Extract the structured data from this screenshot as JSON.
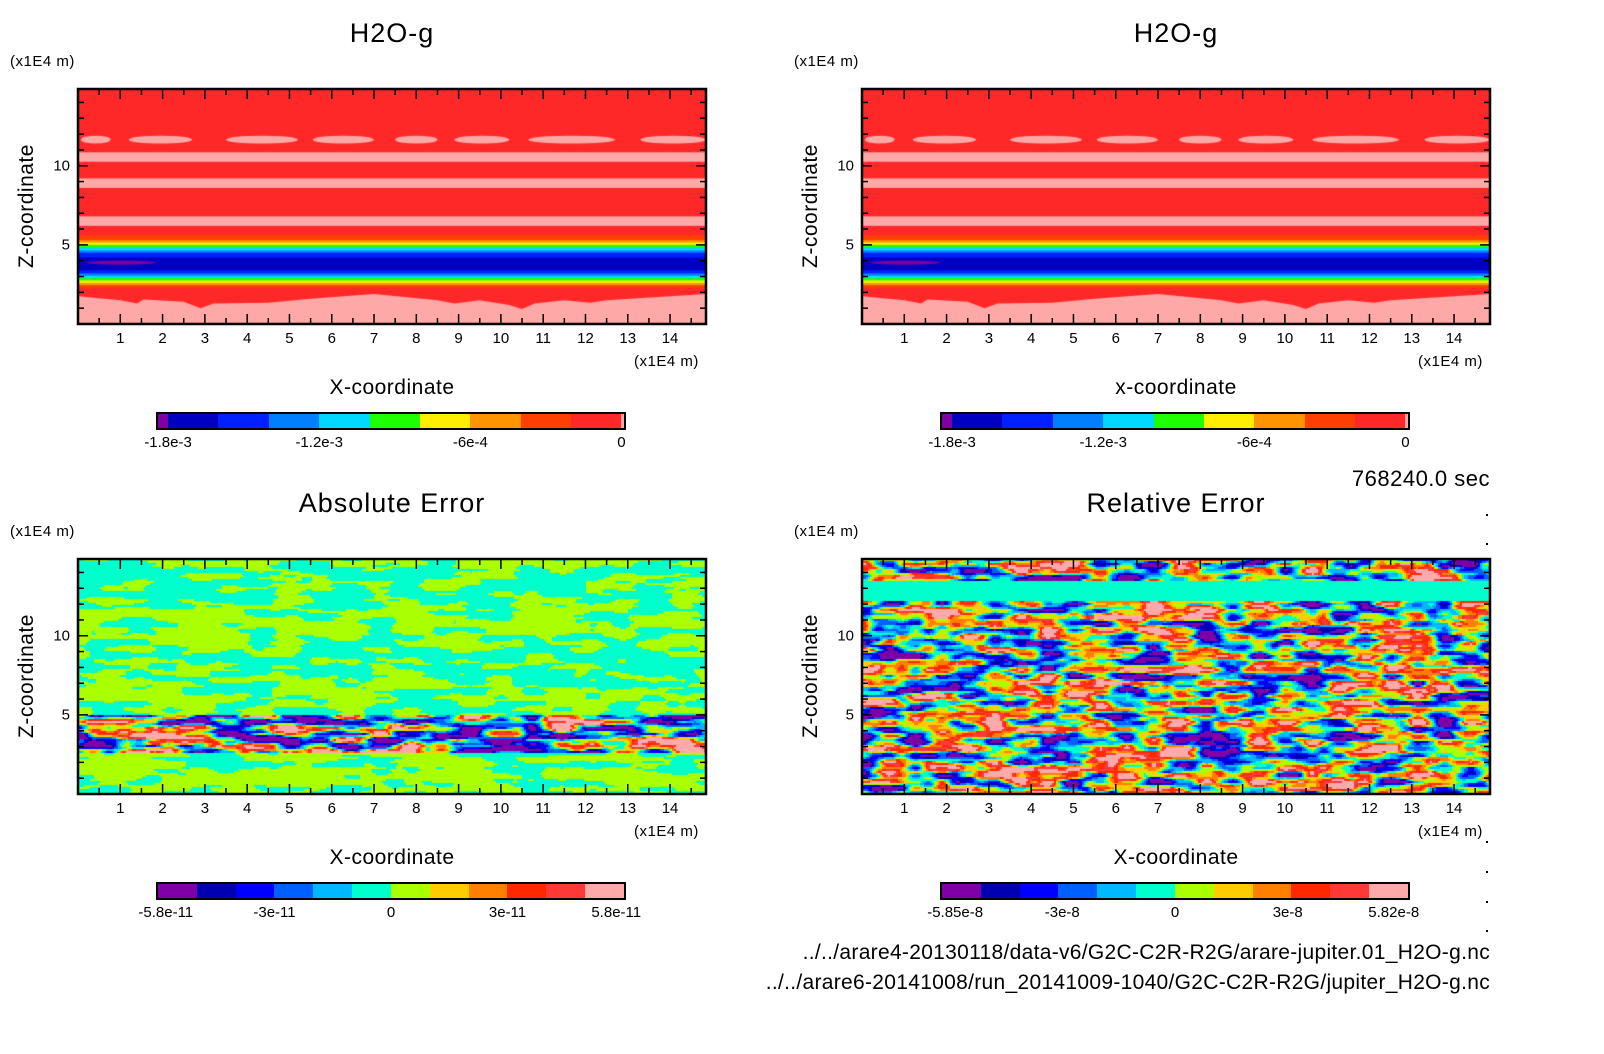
{
  "chart_data": [
    {
      "type": "heatmap",
      "panel": "top-left",
      "title": "H2O-g",
      "xlabel": "X-coordinate",
      "ylabel": "Z-coordinate",
      "x_unit": "(x1E4 m)",
      "y_unit": "(x1E4 m)",
      "xlim": [
        0,
        14.85
      ],
      "ylim": [
        0,
        14.85
      ],
      "xticks": [
        1,
        2,
        3,
        4,
        5,
        6,
        7,
        8,
        9,
        10,
        11,
        12,
        13,
        14
      ],
      "yticks": [
        5,
        10
      ],
      "colorbar": "cb_h2o",
      "field": "h2o"
    },
    {
      "type": "heatmap",
      "panel": "top-right",
      "title": "H2O-g",
      "xlabel": "x-coordinate",
      "ylabel": "Z-coordinate",
      "x_unit": "(x1E4 m)",
      "y_unit": "(x1E4 m)",
      "xlim": [
        0,
        14.85
      ],
      "ylim": [
        0,
        14.85
      ],
      "xticks": [
        1,
        2,
        3,
        4,
        5,
        6,
        7,
        8,
        9,
        10,
        11,
        12,
        13,
        14
      ],
      "yticks": [
        5,
        10
      ],
      "colorbar": "cb_h2o",
      "field": "h2o"
    },
    {
      "type": "heatmap",
      "panel": "bottom-left",
      "title": "Absolute Error",
      "xlabel": "X-coordinate",
      "ylabel": "Z-coordinate",
      "x_unit": "(x1E4 m)",
      "y_unit": "(x1E4 m)",
      "xlim": [
        0,
        14.85
      ],
      "ylim": [
        0,
        14.85
      ],
      "xticks": [
        1,
        2,
        3,
        4,
        5,
        6,
        7,
        8,
        9,
        10,
        11,
        12,
        13,
        14
      ],
      "yticks": [
        5,
        10
      ],
      "colorbar": "cb_abs",
      "field": "abs_error"
    },
    {
      "type": "heatmap",
      "panel": "bottom-right",
      "title": "Relative Error",
      "xlabel": "X-coordinate",
      "ylabel": "Z-coordinate",
      "x_unit": "(x1E4 m)",
      "y_unit": "(x1E4 m)",
      "xlim": [
        0,
        14.85
      ],
      "ylim": [
        0,
        14.85
      ],
      "xticks": [
        1,
        2,
        3,
        4,
        5,
        6,
        7,
        8,
        9,
        10,
        11,
        12,
        13,
        14
      ],
      "yticks": [
        5,
        10
      ],
      "colorbar": "cb_rel",
      "field": "rel_error"
    }
  ],
  "colorbars": {
    "cb_h2o": {
      "colors": [
        "#7f00a0",
        "#0000c0",
        "#0020ff",
        "#0080ff",
        "#00d8ff",
        "#20ff00",
        "#ffee00",
        "#ff9400",
        "#ff4000",
        "#ff2828",
        "#ffa8a8"
      ],
      "boundaries": [
        -0.00184,
        -0.0018,
        -0.0016,
        -0.0014,
        -0.0012,
        -0.001,
        -0.0008,
        -0.0006,
        -0.0004,
        -0.0002,
        0,
        1e-05
      ],
      "ticks": [
        {
          "value": -0.0018,
          "label": "-1.8e-3"
        },
        {
          "value": -0.0012,
          "label": "-1.2e-3"
        },
        {
          "value": -0.0006,
          "label": "-6e-4"
        },
        {
          "value": 0,
          "label": "0"
        }
      ]
    },
    "cb_abs": {
      "colors": [
        "#8000a8",
        "#0000b0",
        "#0000ff",
        "#0060ff",
        "#00b8ff",
        "#00ffcc",
        "#aaff00",
        "#ffcc00",
        "#ff8000",
        "#ff2800",
        "#ff3838",
        "#ffaaaa"
      ],
      "boundaries": [
        -6e-11,
        -5e-11,
        -4e-11,
        -3e-11,
        -2e-11,
        -1e-11,
        0,
        1e-11,
        2e-11,
        3e-11,
        4e-11,
        5e-11,
        6e-11
      ],
      "ticks": [
        {
          "value": -5.8e-11,
          "label": "-5.8e-11"
        },
        {
          "value": -3e-11,
          "label": "-3e-11"
        },
        {
          "value": 0,
          "label": "0"
        },
        {
          "value": 3e-11,
          "label": "3e-11"
        },
        {
          "value": 5.8e-11,
          "label": "5.8e-11"
        }
      ]
    },
    "cb_rel": {
      "colors": [
        "#8000a8",
        "#0000b0",
        "#0000ff",
        "#0060ff",
        "#00b8ff",
        "#00ffcc",
        "#aaff00",
        "#ffcc00",
        "#ff8000",
        "#ff2800",
        "#ff3838",
        "#ffaaaa"
      ],
      "boundaries": [
        -6.2e-08,
        -5.17e-08,
        -4.13e-08,
        -3.1e-08,
        -2.07e-08,
        -1.03e-08,
        0,
        1.03e-08,
        2.07e-08,
        3.1e-08,
        4.13e-08,
        5.17e-08,
        6.2e-08
      ],
      "ticks": [
        {
          "value": -5.85e-08,
          "label": "-5.85e-8"
        },
        {
          "value": -3e-08,
          "label": "-3e-8"
        },
        {
          "value": 0,
          "label": "0"
        },
        {
          "value": 3e-08,
          "label": "3e-8"
        },
        {
          "value": 5.82e-08,
          "label": "5.82e-8"
        }
      ]
    }
  },
  "h2o_field": {
    "bands": [
      [
        11.9,
        14.9,
        9
      ],
      [
        10.85,
        11.9,
        9
      ],
      [
        10.25,
        10.85,
        10
      ],
      [
        9.2,
        10.25,
        9
      ],
      [
        8.6,
        9.2,
        10
      ],
      [
        6.8,
        8.6,
        9
      ],
      [
        6.2,
        6.8,
        10
      ],
      [
        5.6,
        6.2,
        9
      ],
      [
        5.3,
        5.6,
        8
      ],
      [
        5.15,
        5.3,
        7
      ],
      [
        5.0,
        5.15,
        6
      ],
      [
        4.85,
        5.0,
        5
      ],
      [
        4.65,
        4.85,
        4
      ],
      [
        4.5,
        4.65,
        3
      ],
      [
        4.2,
        4.5,
        2
      ],
      [
        3.4,
        4.2,
        1
      ],
      [
        3.2,
        3.4,
        2
      ],
      [
        3.05,
        3.2,
        3
      ],
      [
        2.9,
        3.05,
        4
      ],
      [
        2.75,
        2.9,
        5
      ],
      [
        2.6,
        2.75,
        6
      ],
      [
        2.45,
        2.6,
        7
      ],
      [
        2.3,
        2.45,
        8
      ],
      [
        0,
        2.3,
        9
      ]
    ],
    "pink_patches_z": [
      11.4,
      11.9
    ],
    "pink_patches_x": [
      [
        0.07,
        0.77
      ],
      [
        1.2,
        2.7
      ],
      [
        3.5,
        5.2
      ],
      [
        5.55,
        7.0
      ],
      [
        7.5,
        8.5
      ],
      [
        8.9,
        10.2
      ],
      [
        10.65,
        12.7
      ],
      [
        13.3,
        14.85
      ]
    ],
    "min_patch": {
      "x": [
        0.2,
        1.85
      ],
      "z": [
        3.75,
        4.0
      ]
    },
    "lower_pink_boundary": [
      [
        0,
        1.75
      ],
      [
        1,
        1.5
      ],
      [
        1.4,
        1.3
      ],
      [
        1.55,
        1.55
      ],
      [
        2.5,
        1.4
      ],
      [
        2.9,
        1.0
      ],
      [
        3.2,
        1.3
      ],
      [
        4.5,
        1.35
      ],
      [
        5.5,
        1.6
      ],
      [
        7,
        1.9
      ],
      [
        8.5,
        1.5
      ],
      [
        8.9,
        1.3
      ],
      [
        9.5,
        1.5
      ],
      [
        10.2,
        1.2
      ],
      [
        10.5,
        0.95
      ],
      [
        10.8,
        1.3
      ],
      [
        11.5,
        1.5
      ],
      [
        12.1,
        1.35
      ],
      [
        12.5,
        1.5
      ],
      [
        14.85,
        1.9
      ]
    ]
  },
  "timestamp": "768240.0 sec",
  "file_paths": [
    "../../arare4-20130118/data-v6/G2C-C2R-R2G/arare-jupiter.01_H2O-g.nc",
    "../../arare6-20141008/run_20141009-1040/G2C-C2R-R2G/jupiter_H2O-g.nc"
  ]
}
